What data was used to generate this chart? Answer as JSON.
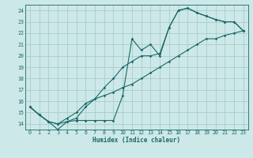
{
  "xlabel": "Humidex (Indice chaleur)",
  "bg_color": "#cde8e8",
  "grid_color": "#aacccc",
  "line_color": "#1a6868",
  "xlim": [
    -0.5,
    23.5
  ],
  "ylim": [
    13.5,
    24.5
  ],
  "xticks": [
    0,
    1,
    2,
    3,
    4,
    5,
    6,
    7,
    8,
    9,
    10,
    11,
    12,
    13,
    14,
    15,
    16,
    17,
    18,
    19,
    20,
    21,
    22,
    23
  ],
  "yticks": [
    14,
    15,
    16,
    17,
    18,
    19,
    20,
    21,
    22,
    23,
    24
  ],
  "line1_x": [
    0,
    1,
    2,
    3,
    4,
    5,
    6,
    7,
    8,
    9,
    10,
    11,
    12,
    13,
    14,
    15,
    16,
    17,
    18,
    19,
    20,
    21,
    22,
    23
  ],
  "line1_y": [
    15.5,
    14.8,
    14.2,
    13.5,
    14.2,
    14.3,
    14.3,
    14.3,
    14.3,
    14.3,
    16.5,
    21.5,
    20.5,
    21.0,
    20.0,
    22.5,
    24.0,
    24.2,
    23.8,
    23.5,
    23.2,
    23.0,
    23.0,
    22.2
  ],
  "line2_x": [
    0,
    1,
    2,
    3,
    4,
    5,
    6,
    7,
    8,
    9,
    10,
    11,
    12,
    13,
    14,
    15,
    16,
    17,
    18,
    19,
    20,
    21,
    22,
    23
  ],
  "line2_y": [
    15.5,
    14.8,
    14.2,
    14.0,
    14.2,
    14.5,
    15.5,
    16.2,
    17.2,
    18.0,
    19.0,
    19.5,
    20.0,
    20.0,
    20.2,
    22.5,
    24.0,
    24.2,
    23.8,
    23.5,
    23.2,
    23.0,
    23.0,
    22.2
  ],
  "line3_x": [
    0,
    1,
    2,
    3,
    4,
    5,
    6,
    7,
    8,
    9,
    10,
    11,
    12,
    13,
    14,
    15,
    16,
    17,
    18,
    19,
    20,
    21,
    22,
    23
  ],
  "line3_y": [
    15.5,
    14.8,
    14.2,
    14.0,
    14.5,
    15.0,
    15.8,
    16.2,
    16.5,
    16.8,
    17.2,
    17.5,
    18.0,
    18.5,
    19.0,
    19.5,
    20.0,
    20.5,
    21.0,
    21.5,
    21.5,
    21.8,
    22.0,
    22.2
  ]
}
